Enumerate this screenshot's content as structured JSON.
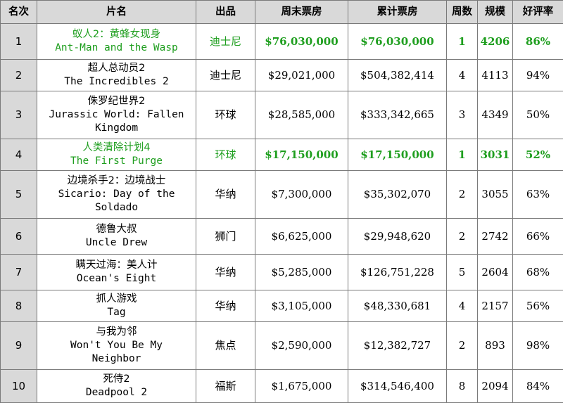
{
  "headers": [
    "名次",
    "片名",
    "出品",
    "周末票房",
    "累计票房",
    "周数",
    "规模",
    "好评率"
  ],
  "highlight_color": "#1e9e1e",
  "rows": [
    {
      "rank": "1",
      "title_cn": "蚁人2：黄蜂女现身",
      "title_en": [
        "Ant-Man and the Wasp"
      ],
      "studio": "迪士尼",
      "weekend": "$76,030,000",
      "total": "$76,030,000",
      "weeks": "1",
      "theaters": "4206",
      "rating": "86%",
      "new": true
    },
    {
      "rank": "2",
      "title_cn": "超人总动员2",
      "title_en": [
        "The Incredibles 2"
      ],
      "studio": "迪士尼",
      "weekend": "$29,021,000",
      "total": "$504,382,414",
      "weeks": "4",
      "theaters": "4113",
      "rating": "94%",
      "new": false
    },
    {
      "rank": "3",
      "title_cn": "侏罗纪世界2",
      "title_en": [
        "Jurassic World: Fallen",
        "Kingdom"
      ],
      "studio": "环球",
      "weekend": "$28,585,000",
      "total": "$333,342,665",
      "weeks": "3",
      "theaters": "4349",
      "rating": "50%",
      "new": false
    },
    {
      "rank": "4",
      "title_cn": "人类清除计划4",
      "title_en": [
        "The First Purge"
      ],
      "studio": "环球",
      "weekend": "$17,150,000",
      "total": "$17,150,000",
      "weeks": "1",
      "theaters": "3031",
      "rating": "52%",
      "new": true
    },
    {
      "rank": "5",
      "title_cn": "边境杀手2：边境战士",
      "title_en": [
        "Sicario: Day of the",
        "Soldado"
      ],
      "studio": "华纳",
      "weekend": "$7,300,000",
      "total": "$35,302,070",
      "weeks": "2",
      "theaters": "3055",
      "rating": "63%",
      "new": false
    },
    {
      "rank": "6",
      "title_cn": "德鲁大叔",
      "title_en": [
        "Uncle Drew"
      ],
      "studio": "狮门",
      "weekend": "$6,625,000",
      "total": "$29,948,620",
      "weeks": "2",
      "theaters": "2742",
      "rating": "66%",
      "new": false
    },
    {
      "rank": "7",
      "title_cn": "瞒天过海：美人计",
      "title_en": [
        "Ocean's Eight"
      ],
      "studio": "华纳",
      "weekend": "$5,285,000",
      "total": "$126,751,228",
      "weeks": "5",
      "theaters": "2604",
      "rating": "68%",
      "new": false
    },
    {
      "rank": "8",
      "title_cn": "抓人游戏",
      "title_en": [
        "Tag"
      ],
      "studio": "华纳",
      "weekend": "$3,105,000",
      "total": "$48,330,681",
      "weeks": "4",
      "theaters": "2157",
      "rating": "56%",
      "new": false
    },
    {
      "rank": "9",
      "title_cn": "与我为邻",
      "title_en": [
        "Won't You Be My",
        "Neighbor"
      ],
      "studio": "焦点",
      "weekend": "$2,590,000",
      "total": "$12,382,727",
      "weeks": "2",
      "theaters": "893",
      "rating": "98%",
      "new": false
    },
    {
      "rank": "10",
      "title_cn": "死侍2",
      "title_en": [
        "Deadpool 2"
      ],
      "studio": "福斯",
      "weekend": "$1,675,000",
      "total": "$314,546,400",
      "weeks": "8",
      "theaters": "2094",
      "rating": "84%",
      "new": false
    }
  ]
}
